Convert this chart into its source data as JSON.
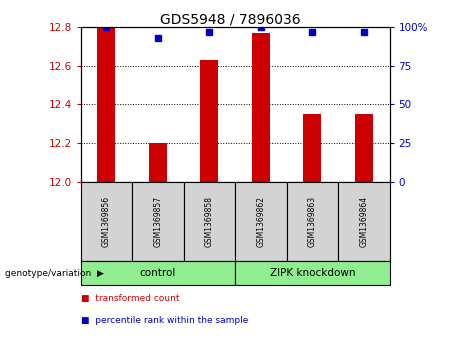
{
  "title": "GDS5948 / 7896036",
  "samples": [
    "GSM1369856",
    "GSM1369857",
    "GSM1369858",
    "GSM1369862",
    "GSM1369863",
    "GSM1369864"
  ],
  "bar_values": [
    12.8,
    12.2,
    12.63,
    12.77,
    12.35,
    12.35
  ],
  "percentile_values": [
    100,
    93,
    97,
    100,
    97,
    97
  ],
  "ylim_left": [
    12.0,
    12.8
  ],
  "ylim_right": [
    0,
    100
  ],
  "yticks_left": [
    12.0,
    12.2,
    12.4,
    12.6,
    12.8
  ],
  "yticks_right": [
    0,
    25,
    50,
    75,
    100
  ],
  "bar_color": "#cc0000",
  "dot_color": "#0000cc",
  "bar_base": 12.0,
  "control_samples": [
    0,
    1,
    2
  ],
  "zipk_samples": [
    3,
    4,
    5
  ],
  "group_labels": [
    "control",
    "ZIPK knockdown"
  ],
  "group_color": "#90ee90",
  "sample_box_color": "#d3d3d3",
  "plot_bg": "white",
  "grid_color": "black",
  "left_tick_color": "#cc0000",
  "right_tick_color": "#0000cc",
  "title_fontsize": 10,
  "legend_label1": "transformed count",
  "legend_label2": "percentile rank within the sample",
  "genotype_label": "genotype/variation"
}
